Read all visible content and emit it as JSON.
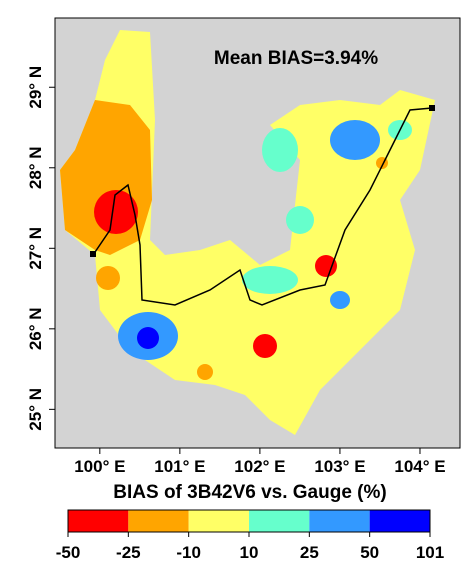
{
  "map": {
    "annotation": "Mean BIAS=3.94%",
    "xlim": [
      99.44,
      104.5
    ],
    "ylim": [
      24.52,
      29.86
    ],
    "xticks": [
      {
        "value": 100,
        "label": "100° E"
      },
      {
        "value": 101,
        "label": "101° E"
      },
      {
        "value": 102,
        "label": "102° E"
      },
      {
        "value": 103,
        "label": "103° E"
      },
      {
        "value": 104,
        "label": "104° E"
      }
    ],
    "yticks": [
      {
        "value": 25,
        "label": "25° N"
      },
      {
        "value": 26,
        "label": "26° N"
      },
      {
        "value": 27,
        "label": "27° N"
      },
      {
        "value": 28,
        "label": "28° N"
      },
      {
        "value": 29,
        "label": "29° N"
      }
    ],
    "colorbar": {
      "title": "BIAS of 3B42V6 vs. Gauge (%)",
      "ticks": [
        -50,
        -25,
        -10,
        10,
        25,
        50,
        101
      ],
      "colors": [
        "#ff0000",
        "#ffa500",
        "#ffff66",
        "#66ffcc",
        "#3399ff",
        "#0000ff"
      ]
    }
  }
}
